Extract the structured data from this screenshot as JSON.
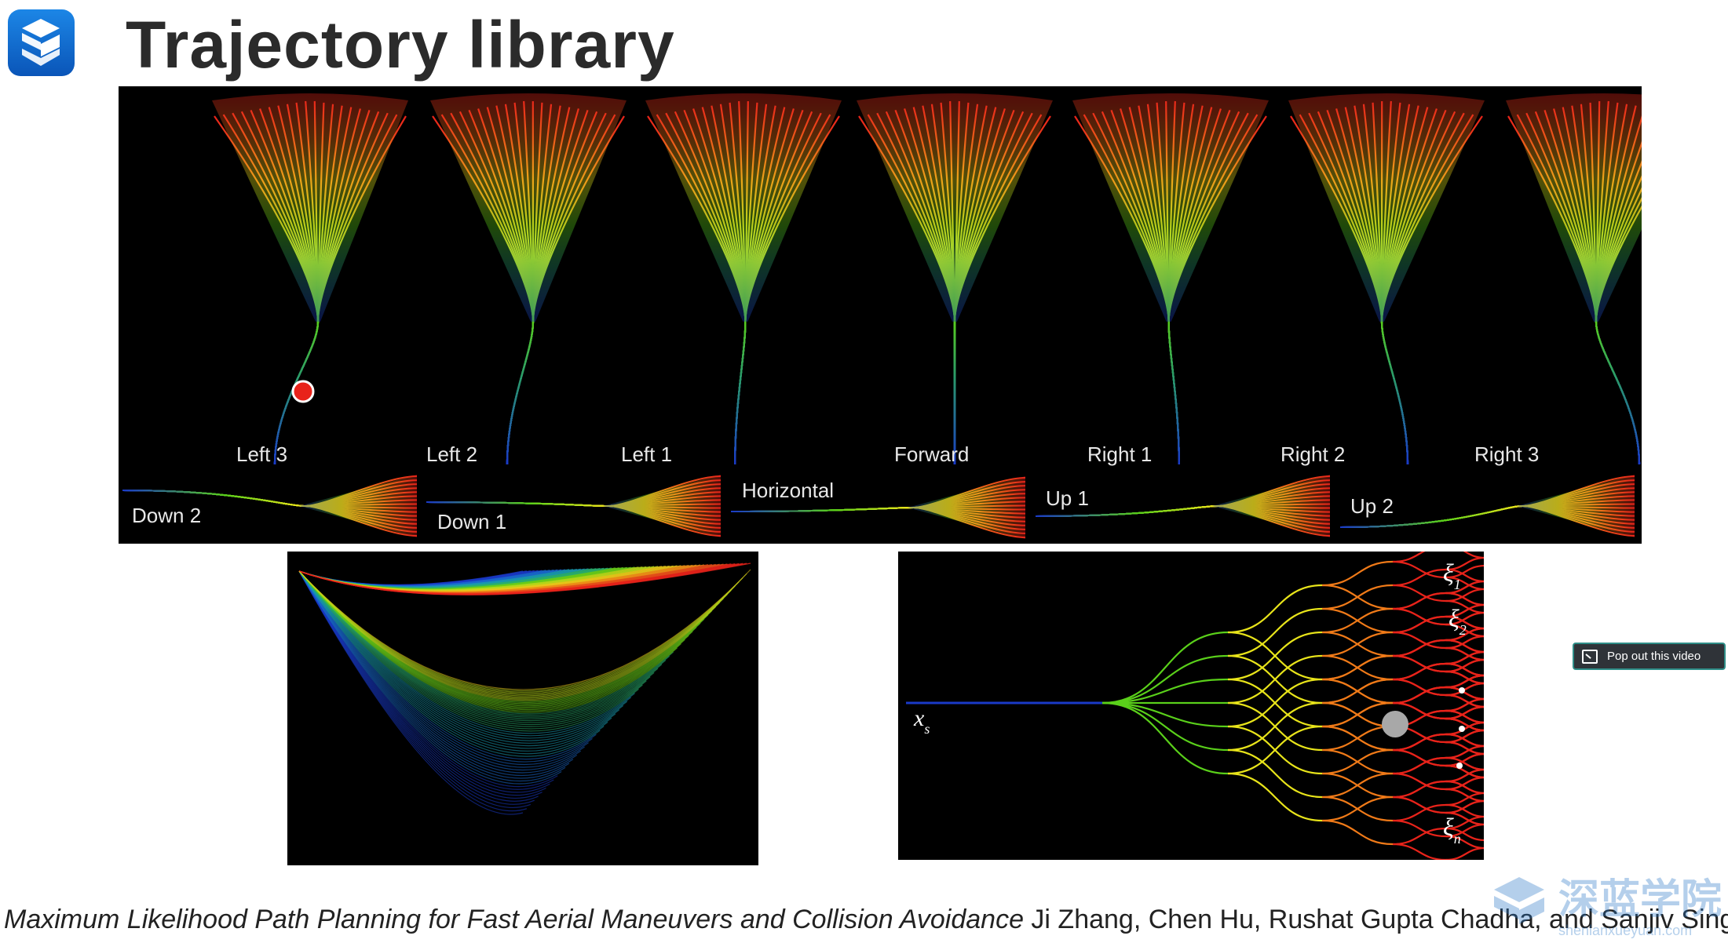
{
  "slide": {
    "title": "Trajectory library"
  },
  "main_figure": {
    "top_labels": [
      "Left 3",
      "Left 2",
      "Left 1",
      "Forward",
      "Right 1",
      "Right 2",
      "Right 3"
    ],
    "bottom_labels": [
      "Down 2",
      "Down 1",
      "Horizontal",
      "Up 1",
      "Up 2"
    ]
  },
  "tree_figure": {
    "start_label": "x",
    "start_sub": "s",
    "end_labels": [
      {
        "symbol": "ξ",
        "sub": "1"
      },
      {
        "symbol": "ξ",
        "sub": "2"
      },
      {
        "symbol": "ξ",
        "sub": "n"
      }
    ]
  },
  "citation": {
    "title": "Maximum Likelihood Path Planning for Fast Aerial Maneuvers and Collision Avoidance",
    "authors": " Ji Zhang, Chen Hu, Rushat Gupta Chadha, and Sanjiv Singh"
  },
  "popout": {
    "label": "Pop out this video"
  },
  "watermark": {
    "text": "深蓝学院",
    "url": "shenlanxueyuan.com"
  },
  "colors": {
    "red": "#e8231a",
    "orange": "#f07a18",
    "yellow": "#e8e41a",
    "green": "#5ad01a",
    "blue": "#1a3ac8"
  }
}
